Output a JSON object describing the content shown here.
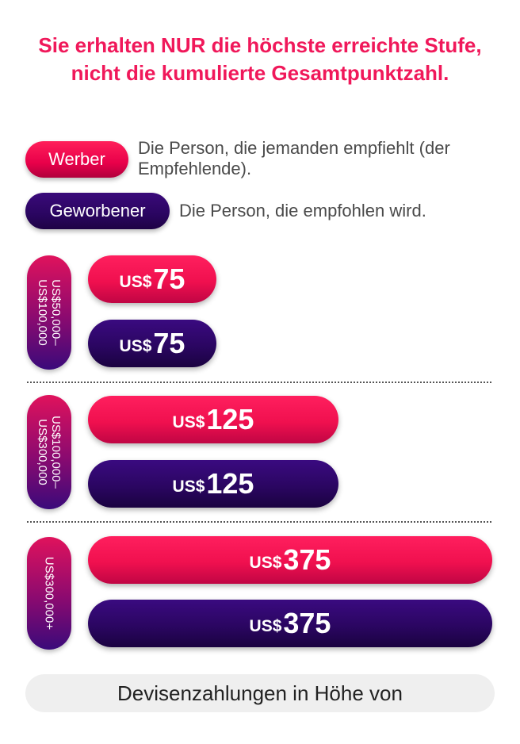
{
  "headline": "Sie erhalten NUR die höchste erreichte Stufe, nicht die kumulierte Gesamtpunktzahl.",
  "legend": {
    "referrer_label": "Werber",
    "referrer_desc": "Die Person, die jemanden empfiehlt (der Empfehlende).",
    "referee_label": "Geworbener",
    "referee_desc": "Die Person, die empfohlen wird.",
    "referrer_color": "#f0185a",
    "referee_color": "#2a0560"
  },
  "tiers": [
    {
      "range": "US$50,000–\nUS$100,000",
      "referrer_currency": "US$",
      "referrer_amount": "75",
      "referee_currency": "US$",
      "referee_amount": "75"
    },
    {
      "range": "US$100,000–\nUS$300,000",
      "referrer_currency": "US$",
      "referrer_amount": "125",
      "referee_currency": "US$",
      "referee_amount": "125"
    },
    {
      "range": "US$300,000+",
      "referrer_currency": "US$",
      "referrer_amount": "375",
      "referee_currency": "US$",
      "referee_amount": "375"
    }
  ],
  "footer": "Devisenzahlungen in Höhe von"
}
